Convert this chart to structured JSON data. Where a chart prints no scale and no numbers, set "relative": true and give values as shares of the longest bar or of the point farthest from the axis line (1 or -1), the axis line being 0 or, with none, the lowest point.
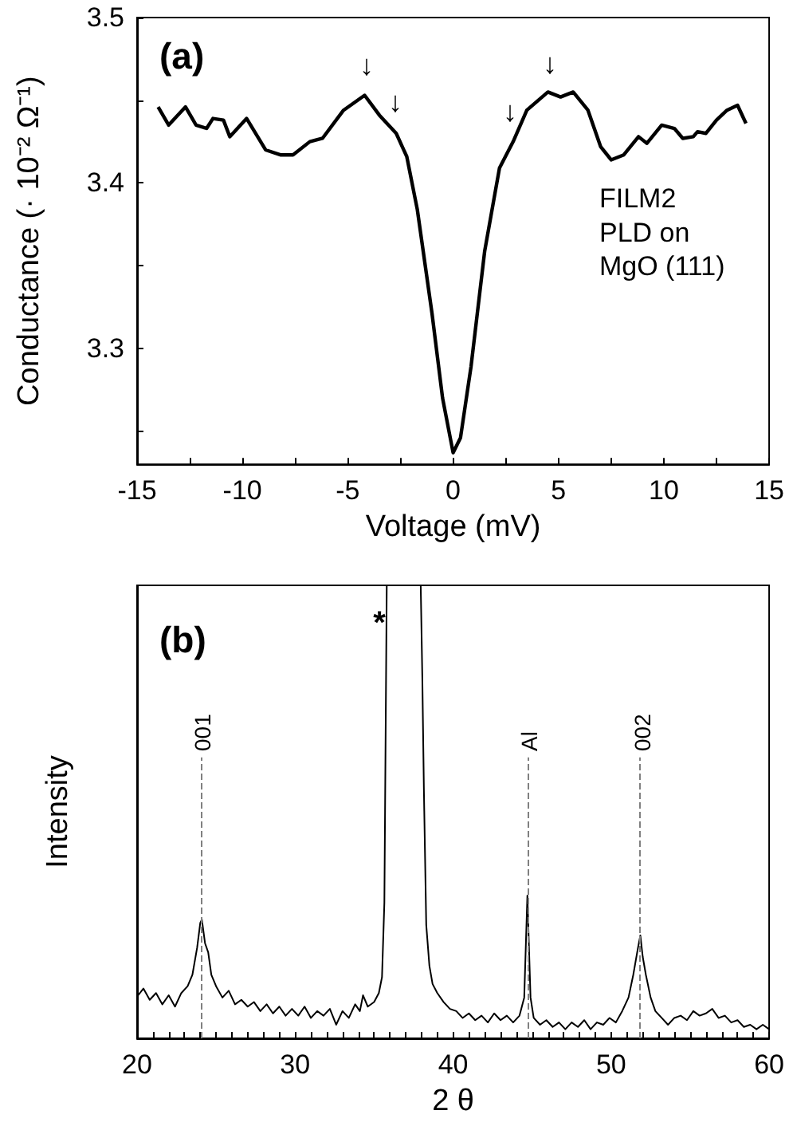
{
  "chart_data": [
    {
      "type": "line",
      "xlabel": "Voltage (mV)",
      "ylabel": "Conductance (· 10⁻² Ω⁻¹)",
      "marker": "none",
      "grid": false,
      "xlim": [
        -15,
        15
      ],
      "ylim": [
        3.23,
        3.5
      ],
      "xticks": [
        -15,
        {
          "value": -12.5,
          "label": null
        },
        -10,
        {
          "value": -7.5,
          "label": null
        },
        -5,
        {
          "value": -2.5,
          "label": null
        },
        0,
        {
          "value": 2.5,
          "label": null
        },
        5,
        {
          "value": 7.5,
          "label": null
        },
        10,
        {
          "value": 12.5,
          "label": null
        },
        15
      ],
      "yticks": [
        {
          "value": 3.25,
          "label": null
        },
        3.3,
        {
          "value": 3.35,
          "label": null
        },
        3.4,
        {
          "value": 3.45,
          "label": null
        },
        3.5
      ],
      "annotations": [
        "(a)",
        "FILM2\nPLD on\nMgO (111)",
        "↓",
        "↓",
        "↓",
        "↓"
      ],
      "series": [
        {
          "color": "#000000",
          "x": [
            -14.0,
            -13.5,
            -12.7,
            -12.2,
            -11.7,
            -11.4,
            -10.9,
            -10.6,
            -9.8,
            -8.9,
            -8.2,
            -7.6,
            -6.8,
            -6.2,
            -5.2,
            -4.2,
            -3.5,
            -2.7,
            -2.2,
            -1.7,
            -1.0,
            -0.5,
            0.0,
            0.35,
            0.85,
            1.5,
            2.2,
            2.85,
            3.5,
            4.5,
            5.1,
            5.7,
            6.4,
            7.0,
            7.5,
            8.1,
            8.8,
            9.2,
            9.9,
            10.5,
            10.9,
            11.4,
            11.6,
            12.0,
            12.5,
            13.0,
            13.5,
            13.9
          ],
          "values": [
            3.446,
            3.435,
            3.446,
            3.435,
            3.433,
            3.439,
            3.438,
            3.428,
            3.439,
            3.42,
            3.417,
            3.417,
            3.425,
            3.427,
            3.444,
            3.453,
            3.441,
            3.43,
            3.416,
            3.384,
            3.321,
            3.27,
            3.237,
            3.246,
            3.289,
            3.359,
            3.409,
            3.425,
            3.444,
            3.455,
            3.452,
            3.455,
            3.444,
            3.422,
            3.414,
            3.417,
            3.428,
            3.424,
            3.435,
            3.433,
            3.427,
            3.428,
            3.431,
            3.43,
            3.438,
            3.444,
            3.447,
            3.436
          ]
        }
      ]
    },
    {
      "type": "line",
      "xlabel": "2 θ",
      "ylabel": "Intensity",
      "marker": "none",
      "grid": false,
      "relative": true,
      "xlim": [
        20,
        60
      ],
      "xticks": [
        20,
        {
          "value": 21,
          "label": null
        },
        {
          "value": 22,
          "label": null
        },
        {
          "value": 23,
          "label": null
        },
        {
          "value": 24,
          "label": null
        },
        {
          "value": 25,
          "label": null
        },
        {
          "value": 26,
          "label": null
        },
        {
          "value": 27,
          "label": null
        },
        {
          "value": 28,
          "label": null
        },
        {
          "value": 29,
          "label": null
        },
        30,
        {
          "value": 31,
          "label": null
        },
        {
          "value": 32,
          "label": null
        },
        {
          "value": 33,
          "label": null
        },
        {
          "value": 34,
          "label": null
        },
        {
          "value": 35,
          "label": null
        },
        {
          "value": 36,
          "label": null
        },
        {
          "value": 37,
          "label": null
        },
        {
          "value": 38,
          "label": null
        },
        {
          "value": 39,
          "label": null
        },
        40,
        {
          "value": 41,
          "label": null
        },
        {
          "value": 42,
          "label": null
        },
        {
          "value": 43,
          "label": null
        },
        {
          "value": 44,
          "label": null
        },
        {
          "value": 45,
          "label": null
        },
        {
          "value": 46,
          "label": null
        },
        {
          "value": 47,
          "label": null
        },
        {
          "value": 48,
          "label": null
        },
        {
          "value": 49,
          "label": null
        },
        50,
        {
          "value": 51,
          "label": null
        },
        {
          "value": 52,
          "label": null
        },
        {
          "value": 53,
          "label": null
        },
        {
          "value": 54,
          "label": null
        },
        {
          "value": 55,
          "label": null
        },
        {
          "value": 56,
          "label": null
        },
        {
          "value": 57,
          "label": null
        },
        {
          "value": 58,
          "label": null
        },
        {
          "value": 59,
          "label": null
        },
        60
      ],
      "annotations": [
        "(b)",
        "*",
        "001",
        "Al",
        "002"
      ],
      "ref_lines": [
        {
          "axis": "x",
          "value": 24.1,
          "line_style": "dashed",
          "color": "#808080"
        },
        {
          "axis": "x",
          "value": 44.7,
          "line_style": "dashed",
          "color": "#808080"
        },
        {
          "axis": "x",
          "value": 51.8,
          "line_style": "dashed",
          "color": "#808080"
        }
      ],
      "series": [
        {
          "color": "#000000",
          "x": [
            20,
            20.4,
            20.8,
            21.2,
            21.6,
            22,
            22.4,
            22.8,
            23.2,
            23.5,
            23.8,
            24.0,
            24.1,
            24.3,
            24.5,
            24.7,
            25.0,
            25.4,
            25.8,
            26.2,
            26.6,
            27.0,
            27.4,
            27.8,
            28.2,
            28.6,
            29.0,
            29.4,
            29.8,
            30.2,
            30.6,
            31.0,
            31.4,
            31.8,
            32.2,
            32.6,
            33.0,
            33.4,
            33.8,
            34.1,
            34.3,
            34.6,
            35.0,
            35.3,
            35.5,
            35.65,
            35.8,
            37.95,
            38.05,
            38.15,
            38.3,
            38.5,
            38.7,
            39.0,
            39.4,
            39.8,
            40.2,
            40.6,
            41.0,
            41.4,
            41.8,
            42.2,
            42.6,
            43.0,
            43.4,
            43.8,
            44.2,
            44.5,
            44.7,
            44.9,
            45.1,
            45.5,
            45.9,
            46.3,
            46.7,
            47.1,
            47.5,
            47.9,
            48.3,
            48.7,
            49.1,
            49.5,
            49.9,
            50.3,
            50.7,
            51.1,
            51.4,
            51.7,
            51.85,
            52.0,
            52.2,
            52.5,
            52.8,
            53.2,
            53.6,
            54.0,
            54.4,
            54.8,
            55.2,
            55.6,
            56.0,
            56.4,
            56.8,
            57.2,
            57.6,
            58.0,
            58.4,
            58.8,
            59.2,
            59.6,
            60.0
          ],
          "values": [
            0.092,
            0.11,
            0.085,
            0.1,
            0.075,
            0.095,
            0.07,
            0.1,
            0.115,
            0.14,
            0.2,
            0.255,
            0.262,
            0.21,
            0.19,
            0.14,
            0.115,
            0.09,
            0.105,
            0.075,
            0.085,
            0.07,
            0.08,
            0.06,
            0.075,
            0.055,
            0.07,
            0.05,
            0.065,
            0.05,
            0.07,
            0.045,
            0.06,
            0.05,
            0.065,
            0.03,
            0.06,
            0.045,
            0.075,
            0.06,
            0.095,
            0.07,
            0.08,
            0.1,
            0.135,
            0.3,
            1,
            1,
            0.8,
            0.55,
            0.25,
            0.16,
            0.12,
            0.1,
            0.08,
            0.065,
            0.06,
            0.045,
            0.055,
            0.04,
            0.05,
            0.035,
            0.055,
            0.04,
            0.05,
            0.035,
            0.05,
            0.09,
            0.315,
            0.09,
            0.045,
            0.03,
            0.04,
            0.025,
            0.035,
            0.02,
            0.035,
            0.025,
            0.04,
            0.02,
            0.035,
            0.03,
            0.045,
            0.035,
            0.06,
            0.09,
            0.14,
            0.2,
            0.227,
            0.18,
            0.14,
            0.09,
            0.06,
            0.045,
            0.03,
            0.045,
            0.05,
            0.04,
            0.06,
            0.05,
            0.055,
            0.065,
            0.045,
            0.05,
            0.035,
            0.04,
            0.025,
            0.03,
            0.02,
            0.03,
            0.02
          ]
        }
      ]
    }
  ]
}
